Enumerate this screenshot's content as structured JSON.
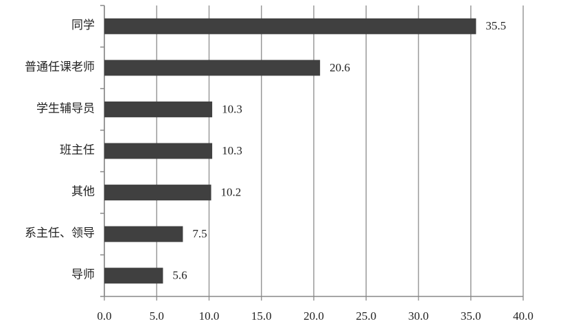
{
  "chart_data": {
    "type": "bar",
    "orientation": "horizontal",
    "categories": [
      "同学",
      "普通任课老师",
      "学生辅导员",
      "班主任",
      "其他",
      "系主任、领导",
      "导师"
    ],
    "values": [
      35.5,
      20.6,
      10.3,
      10.3,
      10.2,
      7.5,
      5.6
    ],
    "color": "#404040",
    "xlim": [
      0,
      40
    ],
    "xticks": [
      {
        "value": 0,
        "label": "0.0"
      },
      {
        "value": 5,
        "label": "5.0"
      },
      {
        "value": 10,
        "label": "10.0"
      },
      {
        "value": 15,
        "label": "15.0"
      },
      {
        "value": 20,
        "label": "20.0"
      },
      {
        "value": 25,
        "label": "25.0"
      },
      {
        "value": 30,
        "label": "30.0"
      },
      {
        "value": 35,
        "label": "35.0"
      },
      {
        "value": 40,
        "label": "40.0"
      }
    ],
    "grid": true
  }
}
